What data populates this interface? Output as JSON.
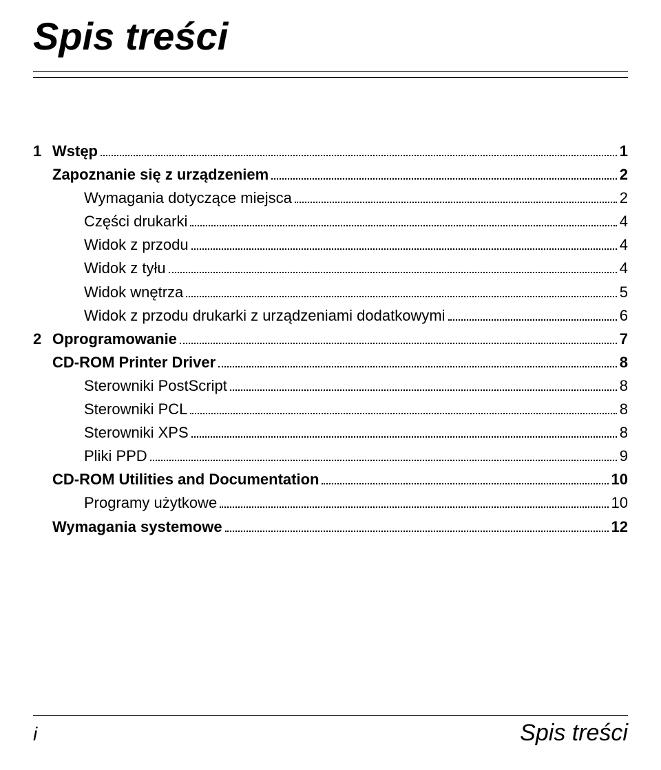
{
  "title": "Spis treści",
  "colors": {
    "text": "#000000",
    "background": "#ffffff",
    "rule": "#000000"
  },
  "typography": {
    "title_fontsize": 56,
    "body_fontsize": 22,
    "footer_left_fontsize": 28,
    "footer_right_fontsize": 34
  },
  "toc": [
    {
      "num": "1",
      "label": "Wstęp",
      "page": "1",
      "bold": true,
      "indent": 0
    },
    {
      "num": "",
      "label": "Zapoznanie się z urządzeniem",
      "page": "2",
      "bold": true,
      "indent": 1
    },
    {
      "num": "",
      "label": "Wymagania dotyczące miejsca",
      "page": "2",
      "bold": false,
      "indent": 2
    },
    {
      "num": "",
      "label": "Części drukarki",
      "page": "4",
      "bold": false,
      "indent": 2
    },
    {
      "num": "",
      "label": "Widok z przodu",
      "page": "4",
      "bold": false,
      "indent": 2
    },
    {
      "num": "",
      "label": "Widok z tyłu",
      "page": "4",
      "bold": false,
      "indent": 2
    },
    {
      "num": "",
      "label": "Widok wnętrza",
      "page": "5",
      "bold": false,
      "indent": 2
    },
    {
      "num": "",
      "label": "Widok z przodu drukarki z urządzeniami dodatkowymi",
      "page": "6",
      "bold": false,
      "indent": 2
    },
    {
      "num": "2",
      "label": "Oprogramowanie",
      "page": "7",
      "bold": true,
      "indent": 0
    },
    {
      "num": "",
      "label": "CD-ROM Printer Driver",
      "page": "8",
      "bold": true,
      "indent": 1
    },
    {
      "num": "",
      "label": "Sterowniki PostScript",
      "page": "8",
      "bold": false,
      "indent": 2
    },
    {
      "num": "",
      "label": "Sterowniki PCL",
      "page": "8",
      "bold": false,
      "indent": 2
    },
    {
      "num": "",
      "label": "Sterowniki XPS",
      "page": "8",
      "bold": false,
      "indent": 2
    },
    {
      "num": "",
      "label": "Pliki PPD",
      "page": "9",
      "bold": false,
      "indent": 2
    },
    {
      "num": "",
      "label": "CD-ROM Utilities and Documentation",
      "page": "10",
      "bold": true,
      "indent": 1
    },
    {
      "num": "",
      "label": "Programy użytkowe",
      "page": "10",
      "bold": false,
      "indent": 2
    },
    {
      "num": "",
      "label": "Wymagania systemowe",
      "page": "12",
      "bold": true,
      "indent": 1
    }
  ],
  "footer": {
    "left": "i",
    "right": "Spis treści"
  }
}
